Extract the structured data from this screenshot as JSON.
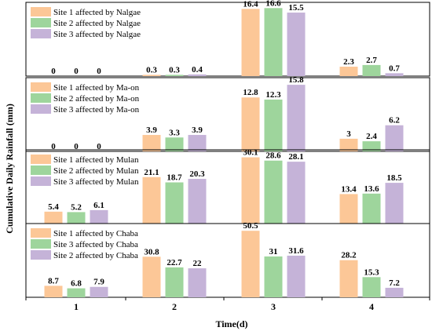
{
  "chart_data": {
    "type": "bar",
    "xlabel": "Time(d)",
    "ylabel": "Cumulative Daily Rainfall (mm)",
    "categories": [
      "1",
      "2",
      "3",
      "4"
    ],
    "colors": [
      "#fcc797",
      "#9ed59c",
      "#c5b3d8"
    ],
    "panels": [
      {
        "series": [
          {
            "name": "Site 1 affected by Nalgae",
            "values": [
              0,
              0.3,
              16.4,
              2.3
            ]
          },
          {
            "name": "Site 2 affected by Nalgae",
            "values": [
              0,
              0.3,
              16.6,
              2.7
            ]
          },
          {
            "name": "Site 3 affected by Nalgae",
            "values": [
              0,
              0.4,
              15.5,
              0.7
            ]
          }
        ],
        "ymax": 18.0
      },
      {
        "series": [
          {
            "name": "Site 1 affected by Ma-on",
            "values": [
              0,
              3.9,
              12.8,
              3
            ]
          },
          {
            "name": "Site 2 affected by Ma-on",
            "values": [
              0,
              3.3,
              12.3,
              2.4
            ]
          },
          {
            "name": "Site 3 affected by Ma-on",
            "values": [
              0,
              3.9,
              15.8,
              6.2
            ]
          }
        ],
        "ymax": 17.5
      },
      {
        "series": [
          {
            "name": "Site 1 affected by Mulan",
            "values": [
              5.4,
              21.1,
              30.1,
              13.4
            ]
          },
          {
            "name": "Site 2 affected by Mulan",
            "values": [
              5.2,
              18.7,
              28.6,
              13.6
            ]
          },
          {
            "name": "Site 3 affected by Mulan",
            "values": [
              6.1,
              20.3,
              28.1,
              18.5
            ]
          }
        ],
        "ymax": 33.5
      },
      {
        "series": [
          {
            "name": "Site 1 affected by Chaba",
            "values": [
              8.7,
              30.8,
              50.5,
              28.2
            ]
          },
          {
            "name": "Site 3 affected by Chaba",
            "values": [
              6.8,
              22.7,
              31,
              15.3
            ]
          },
          {
            "name": "Site 2 affected by Chaba",
            "values": [
              7.9,
              22,
              31.6,
              7.2
            ]
          }
        ],
        "ymax": 56.0
      }
    ]
  }
}
